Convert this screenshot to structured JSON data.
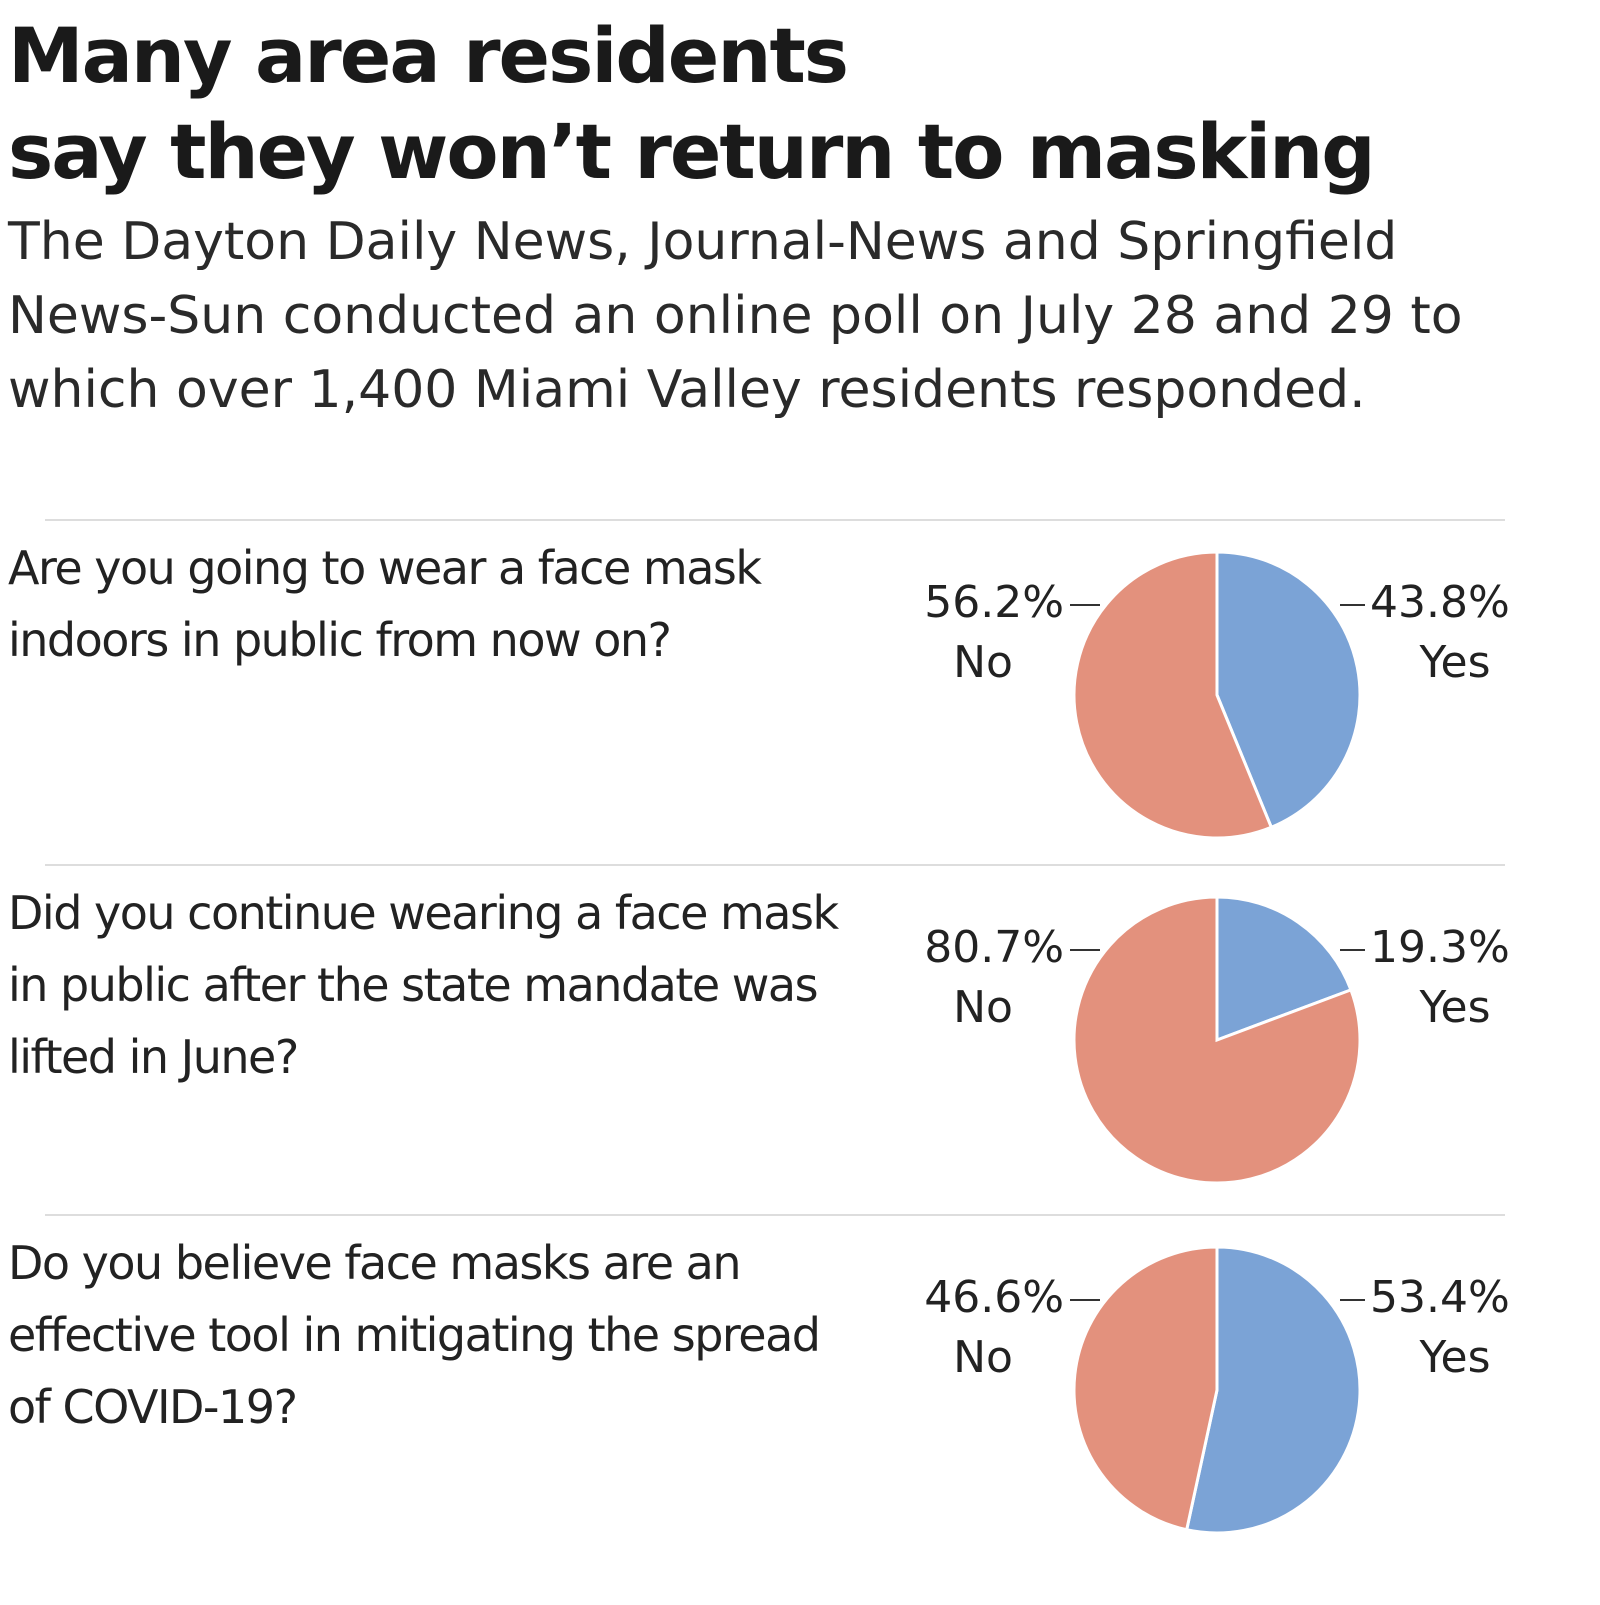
{
  "header": {
    "title": [
      "Many area residents",
      "say they won’t return to masking"
    ],
    "subtitle": "The Dayton Daily News, Journal-News and Springfield News-Sun conducted an online poll on July 28 and 29 to which over 1,400 Miami Valley residents responded."
  },
  "chart_data": [
    {
      "type": "pie",
      "title": "Are you going to wear a face mask indoors in public from now on?",
      "categories": [
        "Yes",
        "No"
      ],
      "values": [
        43.8,
        56.2
      ],
      "value_labels": [
        "43.8%",
        "56.2%"
      ],
      "colors": [
        "#7ba3d6",
        "#e3917d"
      ]
    },
    {
      "type": "pie",
      "title": "Did you continue wearing a face mask in public after the state mandate was lifted in June?",
      "categories": [
        "Yes",
        "No"
      ],
      "values": [
        19.3,
        80.7
      ],
      "value_labels": [
        "19.3%",
        "80.7%"
      ],
      "colors": [
        "#7ba3d6",
        "#e3917d"
      ]
    },
    {
      "type": "pie",
      "title": "Do you believe face masks are an effective tool in mitigating the spread of COVID-19?",
      "categories": [
        "Yes",
        "No"
      ],
      "values": [
        53.4,
        46.6
      ],
      "value_labels": [
        "53.4%",
        "46.6%"
      ],
      "colors": [
        "#7ba3d6",
        "#e3917d"
      ]
    }
  ]
}
